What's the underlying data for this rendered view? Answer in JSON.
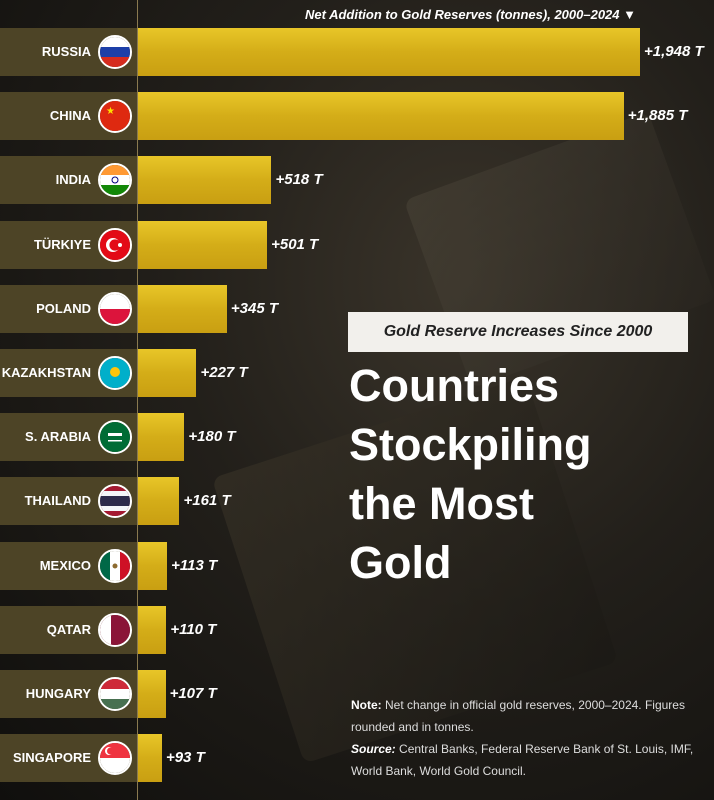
{
  "chart_data": {
    "type": "bar",
    "orientation": "horizontal",
    "title": "Net Addition to Gold Reserves (tonnes), 2000–2024 ▼",
    "unit": "T",
    "categories": [
      "RUSSIA",
      "CHINA",
      "INDIA",
      "TÜRKIYE",
      "POLAND",
      "KAZAKHSTAN",
      "S. ARABIA",
      "THAILAND",
      "MEXICO",
      "QATAR",
      "HUNGARY",
      "SINGAPORE"
    ],
    "values": [
      1948,
      1885,
      518,
      501,
      345,
      227,
      180,
      161,
      113,
      110,
      107,
      93
    ],
    "labels": [
      "+1,948 T",
      "+1,885 T",
      "+518 T",
      "+501 T",
      "+345 T",
      "+227 T",
      "+180 T",
      "+161 T",
      "+113 T",
      "+110 T",
      "+107 T",
      "+93 T"
    ],
    "flags": [
      "russia",
      "china",
      "india",
      "turkiye",
      "poland",
      "kazakhstan",
      "saudi-arabia",
      "thailand",
      "mexico",
      "qatar",
      "hungary",
      "singapore"
    ],
    "bar_color": "#d4ad18"
  },
  "subtitle": "Gold Reserve Increases Since 2000",
  "title_lines": [
    "Countries",
    "Stockpiling",
    "the Most",
    "Gold"
  ],
  "note": {
    "note_label": "Note:",
    "note_text": " Net change in official gold reserves, 2000–2024. Figures rounded and in tonnes.",
    "source_label": "Source:",
    "source_text": " Central Banks, Federal Reserve Bank of St. Louis, IMF, World Bank, World Gold Council."
  }
}
